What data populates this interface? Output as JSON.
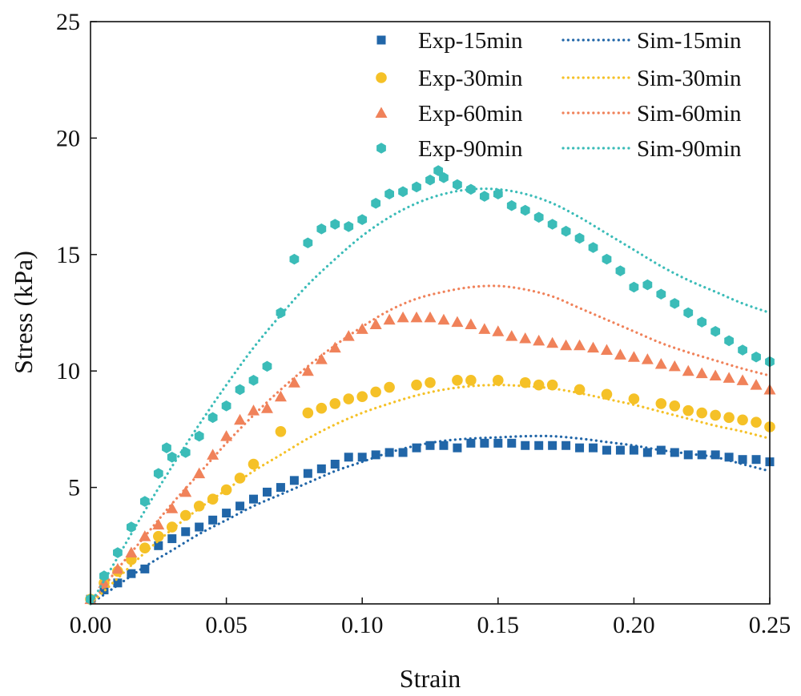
{
  "chart_data": {
    "type": "scatter",
    "xlabel": "Strain",
    "ylabel": "Stress (kPa)",
    "xlim": [
      0,
      0.25
    ],
    "ylim": [
      0,
      25
    ],
    "x_ticks": [
      0.0,
      0.05,
      0.1,
      0.15,
      0.2,
      0.25
    ],
    "x_tick_labels": [
      "0.00",
      "0.05",
      "0.10",
      "0.15",
      "0.20",
      "0.25"
    ],
    "y_ticks": [
      5,
      10,
      15,
      20,
      25
    ],
    "y_tick_labels": [
      "5",
      "10",
      "15",
      "20",
      "25"
    ],
    "grid": false,
    "legend_position": "top-right",
    "series": [
      {
        "name": "Exp-15min",
        "kind": "scatter",
        "marker": "square",
        "color": "#2166a8",
        "x": [
          0.0,
          0.005,
          0.01,
          0.015,
          0.02,
          0.025,
          0.03,
          0.035,
          0.04,
          0.045,
          0.05,
          0.055,
          0.06,
          0.065,
          0.07,
          0.075,
          0.08,
          0.085,
          0.09,
          0.095,
          0.1,
          0.105,
          0.11,
          0.115,
          0.12,
          0.125,
          0.13,
          0.135,
          0.14,
          0.145,
          0.15,
          0.155,
          0.16,
          0.165,
          0.17,
          0.175,
          0.18,
          0.185,
          0.19,
          0.195,
          0.2,
          0.205,
          0.21,
          0.215,
          0.22,
          0.225,
          0.23,
          0.235,
          0.24,
          0.245,
          0.25
        ],
        "y": [
          0.2,
          0.6,
          0.9,
          1.3,
          1.5,
          2.5,
          2.8,
          3.1,
          3.3,
          3.6,
          3.9,
          4.2,
          4.5,
          4.8,
          5.0,
          5.3,
          5.6,
          5.8,
          6.0,
          6.3,
          6.3,
          6.4,
          6.5,
          6.5,
          6.7,
          6.8,
          6.8,
          6.7,
          6.9,
          6.9,
          6.9,
          6.9,
          6.8,
          6.8,
          6.8,
          6.8,
          6.7,
          6.7,
          6.6,
          6.6,
          6.6,
          6.5,
          6.6,
          6.5,
          6.4,
          6.4,
          6.4,
          6.3,
          6.2,
          6.2,
          6.1
        ]
      },
      {
        "name": "Exp-30min",
        "kind": "scatter",
        "marker": "circle",
        "color": "#f5c127",
        "x": [
          0.0,
          0.005,
          0.01,
          0.015,
          0.02,
          0.025,
          0.03,
          0.035,
          0.04,
          0.045,
          0.05,
          0.055,
          0.06,
          0.07,
          0.08,
          0.085,
          0.09,
          0.095,
          0.1,
          0.105,
          0.11,
          0.12,
          0.125,
          0.135,
          0.14,
          0.15,
          0.16,
          0.165,
          0.17,
          0.18,
          0.19,
          0.2,
          0.21,
          0.215,
          0.22,
          0.225,
          0.23,
          0.235,
          0.24,
          0.245,
          0.25
        ],
        "y": [
          0.2,
          0.9,
          1.4,
          1.9,
          2.4,
          2.9,
          3.3,
          3.8,
          4.2,
          4.5,
          4.9,
          5.4,
          6.0,
          7.4,
          8.2,
          8.4,
          8.6,
          8.8,
          8.9,
          9.1,
          9.3,
          9.4,
          9.5,
          9.6,
          9.6,
          9.6,
          9.5,
          9.4,
          9.4,
          9.2,
          9.0,
          8.8,
          8.6,
          8.5,
          8.3,
          8.2,
          8.1,
          8.0,
          7.9,
          7.8,
          7.6
        ]
      },
      {
        "name": "Exp-60min",
        "kind": "scatter",
        "marker": "triangle",
        "color": "#f0825a",
        "x": [
          0.0,
          0.005,
          0.01,
          0.015,
          0.02,
          0.025,
          0.03,
          0.035,
          0.04,
          0.045,
          0.05,
          0.055,
          0.06,
          0.065,
          0.07,
          0.075,
          0.08,
          0.085,
          0.09,
          0.095,
          0.1,
          0.105,
          0.11,
          0.115,
          0.12,
          0.125,
          0.13,
          0.135,
          0.14,
          0.145,
          0.15,
          0.155,
          0.16,
          0.165,
          0.17,
          0.175,
          0.18,
          0.185,
          0.19,
          0.195,
          0.2,
          0.205,
          0.21,
          0.215,
          0.22,
          0.225,
          0.23,
          0.235,
          0.24,
          0.245,
          0.25
        ],
        "y": [
          0.2,
          0.9,
          1.5,
          2.2,
          2.9,
          3.4,
          4.1,
          4.8,
          5.6,
          6.4,
          7.2,
          7.9,
          8.3,
          8.4,
          8.9,
          9.5,
          10.0,
          10.5,
          11.0,
          11.5,
          11.8,
          12.0,
          12.2,
          12.3,
          12.3,
          12.3,
          12.2,
          12.1,
          12.0,
          11.8,
          11.7,
          11.5,
          11.4,
          11.3,
          11.2,
          11.1,
          11.1,
          11.0,
          10.9,
          10.7,
          10.6,
          10.5,
          10.3,
          10.2,
          10.0,
          9.9,
          9.8,
          9.7,
          9.6,
          9.4,
          9.2
        ]
      },
      {
        "name": "Exp-90min",
        "kind": "scatter",
        "marker": "hexagon",
        "color": "#3bbcb8",
        "x": [
          0.0,
          0.005,
          0.01,
          0.015,
          0.02,
          0.025,
          0.028,
          0.03,
          0.035,
          0.04,
          0.045,
          0.05,
          0.055,
          0.06,
          0.065,
          0.07,
          0.075,
          0.08,
          0.085,
          0.09,
          0.095,
          0.1,
          0.105,
          0.11,
          0.115,
          0.12,
          0.125,
          0.128,
          0.13,
          0.135,
          0.14,
          0.145,
          0.15,
          0.155,
          0.16,
          0.165,
          0.17,
          0.175,
          0.18,
          0.185,
          0.19,
          0.195,
          0.2,
          0.205,
          0.21,
          0.215,
          0.22,
          0.225,
          0.23,
          0.235,
          0.24,
          0.245,
          0.25
        ],
        "y": [
          0.2,
          1.2,
          2.2,
          3.3,
          4.4,
          5.6,
          6.7,
          6.3,
          6.5,
          7.2,
          8.0,
          8.5,
          9.2,
          9.6,
          10.2,
          12.5,
          14.8,
          15.5,
          16.1,
          16.3,
          16.2,
          16.5,
          17.2,
          17.6,
          17.7,
          17.9,
          18.2,
          18.6,
          18.3,
          18.0,
          17.8,
          17.5,
          17.6,
          17.1,
          16.9,
          16.6,
          16.3,
          16.0,
          15.7,
          15.3,
          14.8,
          14.3,
          13.6,
          13.7,
          13.3,
          12.9,
          12.5,
          12.1,
          11.7,
          11.3,
          10.9,
          10.6,
          10.4
        ]
      },
      {
        "name": "Sim-15min",
        "kind": "line",
        "style": "dotted",
        "color": "#2166a8",
        "x": [
          0.0,
          0.01,
          0.02,
          0.03,
          0.04,
          0.05,
          0.06,
          0.07,
          0.08,
          0.09,
          0.1,
          0.11,
          0.12,
          0.13,
          0.14,
          0.15,
          0.16,
          0.17,
          0.18,
          0.19,
          0.2,
          0.21,
          0.22,
          0.23,
          0.24,
          0.25
        ],
        "y": [
          0.0,
          0.8,
          1.6,
          2.3,
          3.0,
          3.6,
          4.2,
          4.7,
          5.2,
          5.7,
          6.1,
          6.5,
          6.8,
          7.0,
          7.1,
          7.15,
          7.2,
          7.2,
          7.1,
          6.95,
          6.8,
          6.6,
          6.45,
          6.3,
          6.0,
          5.7
        ]
      },
      {
        "name": "Sim-30min",
        "kind": "line",
        "style": "dotted",
        "color": "#f5c127",
        "x": [
          0.0,
          0.01,
          0.02,
          0.03,
          0.04,
          0.05,
          0.06,
          0.07,
          0.08,
          0.09,
          0.1,
          0.11,
          0.12,
          0.13,
          0.14,
          0.15,
          0.16,
          0.17,
          0.18,
          0.19,
          0.2,
          0.21,
          0.22,
          0.23,
          0.24,
          0.25
        ],
        "y": [
          0.0,
          1.1,
          2.2,
          3.2,
          4.1,
          4.9,
          5.7,
          6.4,
          7.1,
          7.7,
          8.2,
          8.6,
          8.95,
          9.2,
          9.35,
          9.4,
          9.35,
          9.25,
          9.05,
          8.8,
          8.55,
          8.25,
          7.95,
          7.65,
          7.4,
          7.1
        ]
      },
      {
        "name": "Sim-60min",
        "kind": "line",
        "style": "dotted",
        "color": "#f0825a",
        "x": [
          0.0,
          0.01,
          0.02,
          0.03,
          0.04,
          0.05,
          0.06,
          0.07,
          0.08,
          0.09,
          0.1,
          0.11,
          0.12,
          0.13,
          0.14,
          0.15,
          0.16,
          0.17,
          0.18,
          0.19,
          0.2,
          0.21,
          0.22,
          0.23,
          0.24,
          0.25
        ],
        "y": [
          0.0,
          1.5,
          2.9,
          4.3,
          5.6,
          6.9,
          8.1,
          9.2,
          10.2,
          11.1,
          11.9,
          12.6,
          13.1,
          13.4,
          13.6,
          13.65,
          13.5,
          13.2,
          12.7,
          12.2,
          11.7,
          11.2,
          10.8,
          10.45,
          10.1,
          9.8
        ]
      },
      {
        "name": "Sim-90min",
        "kind": "line",
        "style": "dotted",
        "color": "#3bbcb8",
        "x": [
          0.0,
          0.01,
          0.02,
          0.03,
          0.04,
          0.05,
          0.06,
          0.07,
          0.08,
          0.09,
          0.1,
          0.11,
          0.12,
          0.13,
          0.14,
          0.15,
          0.16,
          0.17,
          0.18,
          0.19,
          0.2,
          0.21,
          0.22,
          0.23,
          0.24,
          0.25
        ],
        "y": [
          0.0,
          2.0,
          4.0,
          5.9,
          7.7,
          9.4,
          11.0,
          12.4,
          13.7,
          14.8,
          15.8,
          16.6,
          17.2,
          17.6,
          17.8,
          17.8,
          17.6,
          17.2,
          16.6,
          15.9,
          15.2,
          14.5,
          13.9,
          13.4,
          12.9,
          12.5
        ]
      }
    ]
  }
}
